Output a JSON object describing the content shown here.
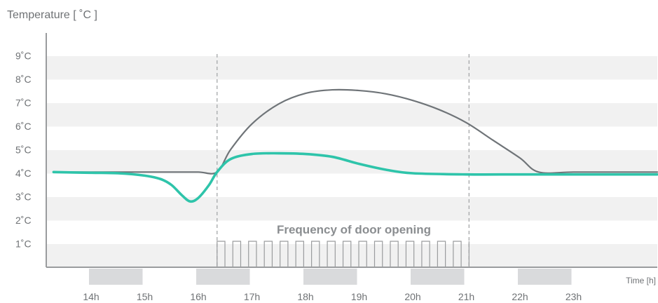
{
  "chart_data": {
    "type": "line",
    "ylabel": "Temperature [ ˚C ]",
    "xlabel": "Time [h]",
    "y_ticks": [
      "1˚C",
      "2˚C",
      "3˚C",
      "4˚C",
      "5˚C",
      "6˚C",
      "7˚C",
      "8˚C",
      "9˚C"
    ],
    "y_tick_values": [
      1,
      2,
      3,
      4,
      5,
      6,
      7,
      8,
      9
    ],
    "x_ticks": [
      "14h",
      "15h",
      "16h",
      "17h",
      "18h",
      "19h",
      "20h",
      "21h",
      "22h",
      "23h"
    ],
    "x_tick_values": [
      14,
      15,
      16,
      17,
      18,
      19,
      20,
      21,
      22,
      23
    ],
    "xlim": [
      13.3,
      24.6
    ],
    "ylim": [
      0,
      10
    ],
    "grid": "alternating horizontal bands",
    "door_opening_window": [
      16.35,
      21.05
    ],
    "annotation": "Frequency of door opening",
    "colors": {
      "series_gray": "#6f7478",
      "series_teal": "#2ec4aa",
      "band": "#f1f1f1",
      "axis": "#9a9c9e",
      "marker_block": "#d9dadc",
      "door_pulse": "#9a9c9e",
      "dashed": "#a5a7a9"
    },
    "series": [
      {
        "color_key": "series_gray",
        "x": [
          13.3,
          14.0,
          15.0,
          15.5,
          16.0,
          16.35,
          16.6,
          17.0,
          17.5,
          18.0,
          18.5,
          19.0,
          19.5,
          20.0,
          20.5,
          21.0,
          21.5,
          22.0,
          22.35,
          23.0,
          24.0,
          24.6
        ],
        "y": [
          4.05,
          4.05,
          4.05,
          4.05,
          4.05,
          4.05,
          5.0,
          6.1,
          6.95,
          7.4,
          7.55,
          7.52,
          7.38,
          7.1,
          6.7,
          6.15,
          5.4,
          4.65,
          4.05,
          4.05,
          4.05,
          4.05
        ]
      },
      {
        "color_key": "series_teal",
        "x": [
          13.3,
          14.0,
          14.5,
          15.0,
          15.3,
          15.5,
          15.7,
          15.85,
          16.0,
          16.2,
          16.35,
          16.6,
          17.0,
          17.5,
          18.0,
          18.5,
          19.0,
          19.5,
          20.0,
          21.0,
          22.0,
          23.0,
          24.0,
          24.6
        ],
        "y": [
          4.05,
          4.02,
          4.0,
          3.9,
          3.75,
          3.5,
          3.05,
          2.8,
          2.95,
          3.5,
          4.05,
          4.6,
          4.82,
          4.85,
          4.82,
          4.7,
          4.4,
          4.15,
          4.0,
          3.95,
          3.95,
          3.95,
          3.95,
          3.95
        ]
      }
    ],
    "marker_blocks": [
      [
        14.0,
        15.0
      ],
      [
        16.0,
        17.0
      ],
      [
        18.0,
        19.0
      ],
      [
        20.0,
        21.0
      ],
      [
        22.0,
        23.0
      ]
    ]
  }
}
